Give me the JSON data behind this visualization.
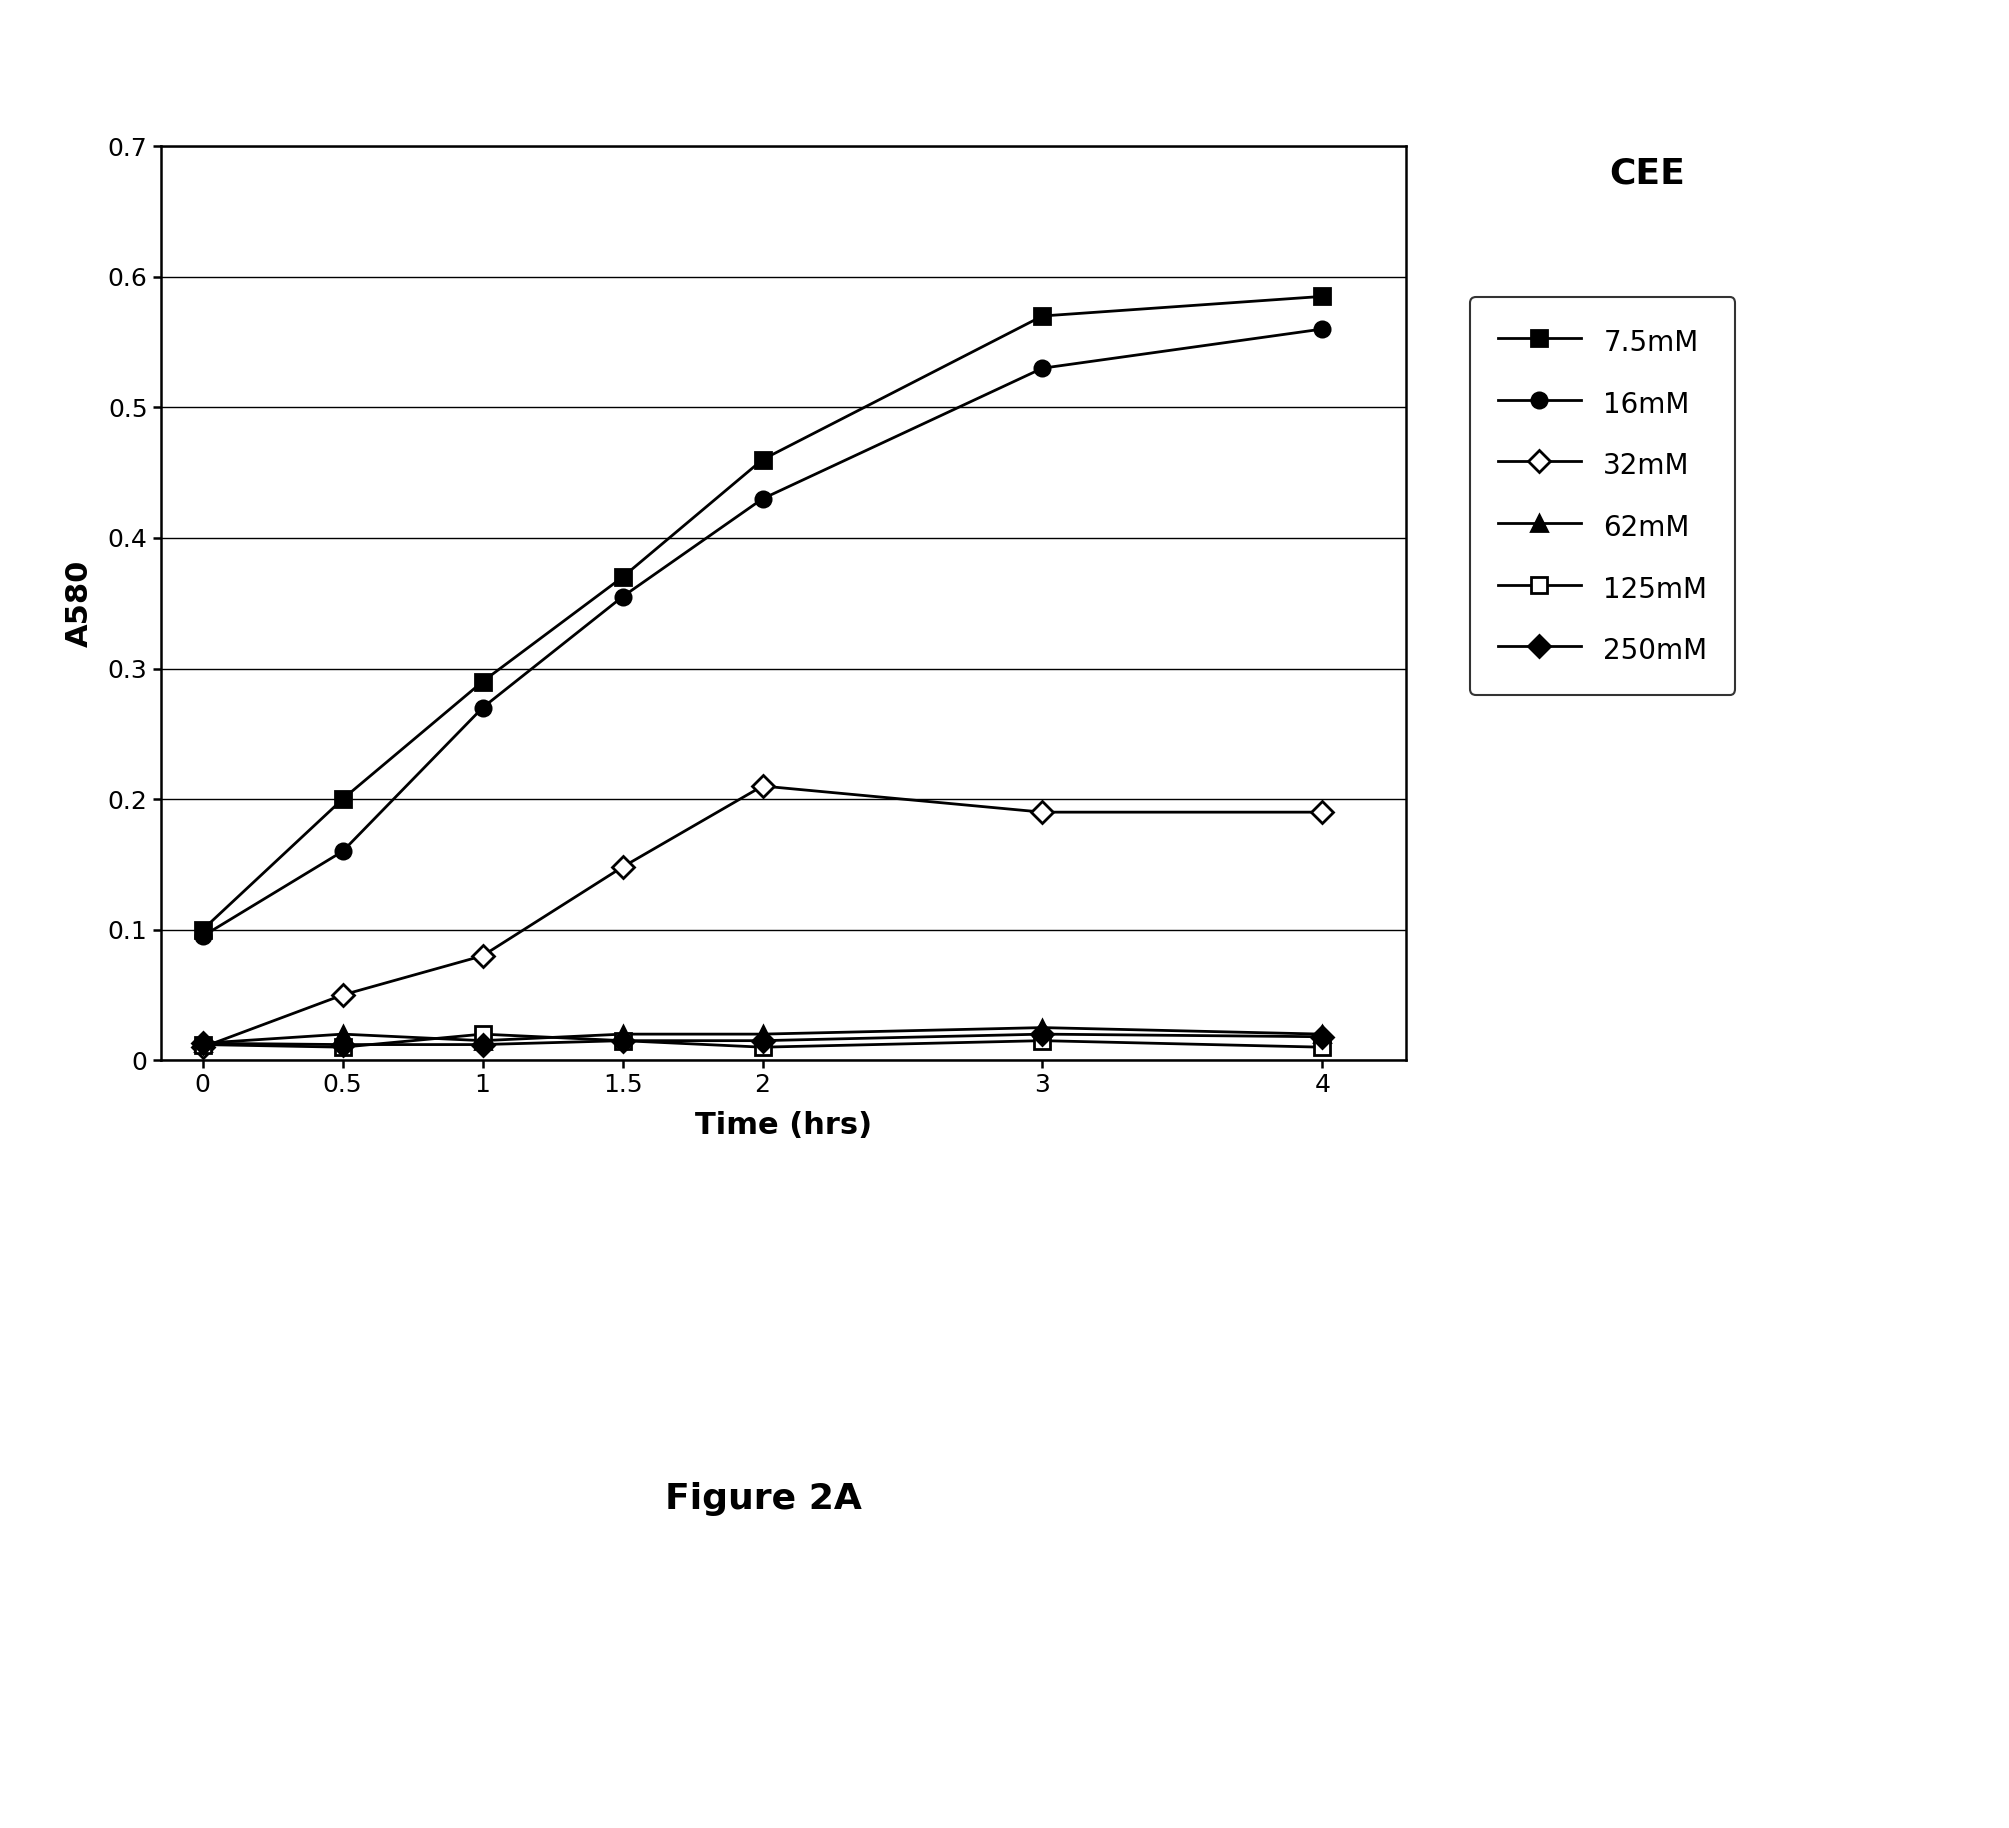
{
  "title": "CEE",
  "xlabel": "Time (hrs)",
  "ylabel": "A580",
  "figure_caption": "Figure 2A",
  "xlim": [
    -0.15,
    4.3
  ],
  "ylim": [
    0,
    0.7
  ],
  "xticks": [
    0,
    0.5,
    1,
    1.5,
    2,
    3,
    4
  ],
  "yticks": [
    0,
    0.1,
    0.2,
    0.3,
    0.4,
    0.5,
    0.6,
    0.7
  ],
  "series": [
    {
      "label": "7.5mM",
      "x": [
        0,
        0.5,
        1,
        1.5,
        2,
        3,
        4
      ],
      "y": [
        0.1,
        0.2,
        0.29,
        0.37,
        0.46,
        0.57,
        0.585
      ],
      "color": "#000000",
      "marker": "s",
      "marker_filled": true,
      "linewidth": 2.0
    },
    {
      "label": "16mM",
      "x": [
        0,
        0.5,
        1,
        1.5,
        2,
        3,
        4
      ],
      "y": [
        0.095,
        0.16,
        0.27,
        0.355,
        0.43,
        0.53,
        0.56
      ],
      "color": "#000000",
      "marker": "o",
      "marker_filled": true,
      "linewidth": 2.0
    },
    {
      "label": "32mM",
      "x": [
        0,
        0.5,
        1,
        1.5,
        2,
        3,
        4
      ],
      "y": [
        0.01,
        0.05,
        0.08,
        0.148,
        0.21,
        0.19,
        0.19
      ],
      "color": "#000000",
      "marker": "D",
      "marker_filled": false,
      "linewidth": 2.0
    },
    {
      "label": "62mM",
      "x": [
        0,
        0.5,
        1,
        1.5,
        2,
        3,
        4
      ],
      "y": [
        0.013,
        0.02,
        0.015,
        0.02,
        0.02,
        0.025,
        0.02
      ],
      "color": "#000000",
      "marker": "^",
      "marker_filled": true,
      "linewidth": 2.0
    },
    {
      "label": "125mM",
      "x": [
        0,
        0.5,
        1,
        1.5,
        2,
        3,
        4
      ],
      "y": [
        0.012,
        0.01,
        0.02,
        0.015,
        0.01,
        0.015,
        0.01
      ],
      "color": "#000000",
      "marker": "s",
      "marker_filled": false,
      "linewidth": 2.0
    },
    {
      "label": "250mM",
      "x": [
        0,
        0.5,
        1,
        1.5,
        2,
        3,
        4
      ],
      "y": [
        0.013,
        0.012,
        0.012,
        0.015,
        0.015,
        0.02,
        0.018
      ],
      "color": "#000000",
      "marker": "D",
      "marker_filled": true,
      "linewidth": 2.0
    }
  ],
  "fig_width": 20.09,
  "fig_height": 18.28,
  "dpi": 100
}
